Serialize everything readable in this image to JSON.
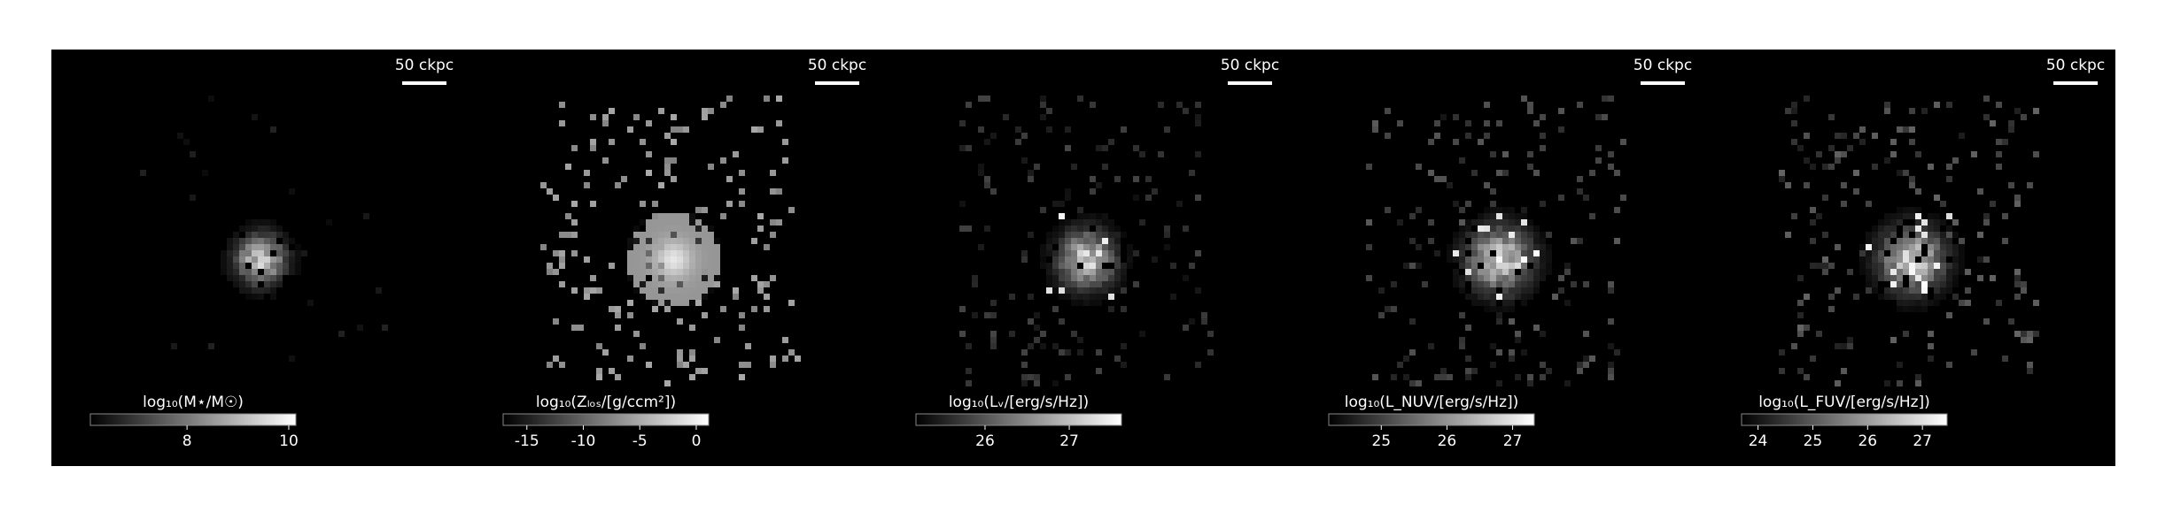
{
  "chart_data": [
    {
      "type": "image",
      "scale_label": "50 ckpc",
      "colorbar_label": "log₁₀(M⋆/M☉)",
      "xlim": [
        6.1,
        10.14
      ],
      "xticks": [
        8,
        10
      ]
    },
    {
      "type": "image",
      "scale_label": "50 ckpc",
      "colorbar_label": "log₁₀(Zₗₒₛ/[g/ccm²])",
      "xlim": [
        -17.1,
        1.1
      ],
      "xticks": [
        -15,
        -10,
        -5,
        0
      ]
    },
    {
      "type": "image",
      "scale_label": "50 ckpc",
      "colorbar_label": "log₁₀(Lᵥ/[erg/s/Hz])",
      "xlim": [
        25.18,
        27.62
      ],
      "xticks": [
        26,
        27
      ]
    },
    {
      "type": "image",
      "scale_label": "50 ckpc",
      "colorbar_label": "log₁₀(L_NUV/[erg/s/Hz])",
      "xlim": [
        24.2,
        27.33
      ],
      "xticks": [
        25,
        26,
        27
      ]
    },
    {
      "type": "image",
      "scale_label": "50 ckpc",
      "colorbar_label": "log₁₀(L_FUV/[erg/s/Hz])",
      "xlim": [
        23.7,
        27.45
      ],
      "xticks": [
        24,
        25,
        26,
        27
      ]
    }
  ]
}
